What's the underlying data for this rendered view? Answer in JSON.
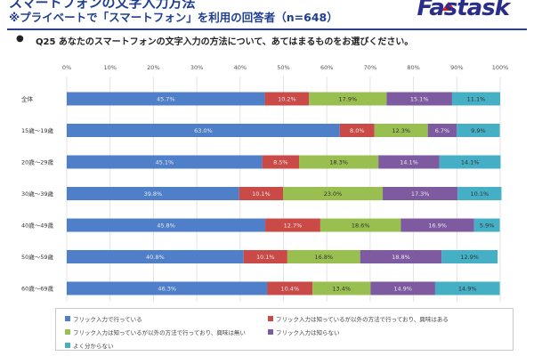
{
  "header": {
    "title": "スマートフォンの文字入力方法",
    "subtitle": "※プライベートで「スマートフォン」を利用の回答者（n=648）",
    "logo": "Fastask"
  },
  "question": "Q25 あなたのスマートフォンの文字入力の方法について、あてはまるものをお選びください。",
  "chart_data": {
    "type": "bar",
    "orientation": "horizontal",
    "stacked": true,
    "percent_stacked": true,
    "categories": [
      "全体",
      "15歳～19歳",
      "20歳～29歳",
      "30歳～39歳",
      "40歳～49歳",
      "50歳～59歳",
      "60歳～69歳"
    ],
    "x_ticks": [
      "0%",
      "10%",
      "20%",
      "30%",
      "40%",
      "50%",
      "60%",
      "70%",
      "80%",
      "90%",
      "100%"
    ],
    "xlim": [
      0,
      100
    ],
    "grid": true,
    "legend_position": "bottom",
    "series": [
      {
        "name": "フリック入力で行っている",
        "color": "#4f7fc8",
        "values": [
          45.7,
          63.0,
          45.1,
          39.8,
          45.8,
          40.8,
          46.3
        ]
      },
      {
        "name": "フリック入力は知っているが以外の方法で行っており、興味はある",
        "color": "#c94a47",
        "values": [
          10.2,
          8.0,
          8.5,
          10.1,
          12.7,
          10.1,
          10.4
        ]
      },
      {
        "name": "フリック入力は知っているが以外の方法で行っており、興味は無い",
        "color": "#99bf50",
        "values": [
          17.9,
          12.3,
          18.3,
          23.0,
          18.6,
          16.8,
          13.4
        ]
      },
      {
        "name": "フリック入力は知らない",
        "color": "#7e5aa0",
        "values": [
          15.1,
          6.7,
          14.1,
          17.3,
          16.9,
          18.8,
          14.9
        ]
      },
      {
        "name": "よく分からない",
        "color": "#45afc6",
        "values": [
          11.1,
          9.9,
          14.1,
          10.1,
          5.9,
          12.9,
          14.9
        ]
      }
    ]
  }
}
